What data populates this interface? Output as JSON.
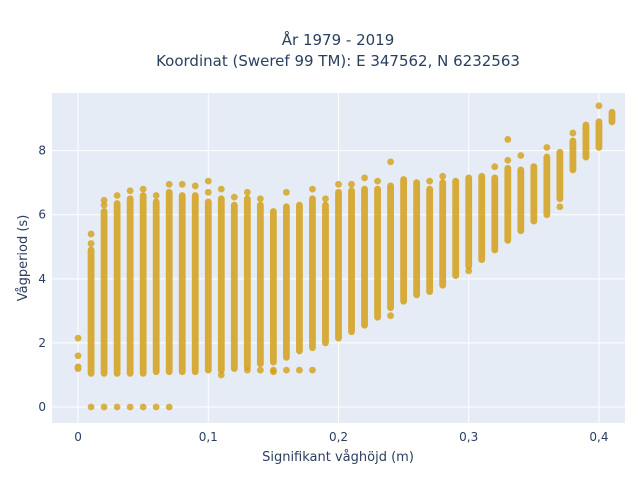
{
  "chart_data": {
    "type": "scatter",
    "title_line1": "År 1979 - 2019",
    "title_line2": "Koordinat (Sweref 99 TM): E 347562, N 6232563",
    "xlabel": "Signifikant våghöjd (m)",
    "ylabel": "Vågperiod (s)",
    "xlim": [
      -0.02,
      0.42
    ],
    "ylim": [
      -0.5,
      9.8
    ],
    "xticks": [
      0,
      0.1,
      0.2,
      0.3,
      0.4
    ],
    "xtick_labels": [
      "0",
      "0,1",
      "0,2",
      "0,3",
      "0,4"
    ],
    "yticks": [
      0,
      2,
      4,
      6,
      8
    ],
    "ytick_labels": [
      "0",
      "2",
      "4",
      "6",
      "8"
    ],
    "grid": true,
    "marker_color": "#d4a017",
    "plot_bg": "#e5ecf6",
    "columns": [
      {
        "x": 0.0,
        "ymin": 1.2,
        "ymax": 1.25,
        "extra": [
          1.6,
          2.15
        ]
      },
      {
        "x": 0.01,
        "ymin": 1.05,
        "ymax": 4.9,
        "extra": [
          0,
          5.1,
          5.4
        ]
      },
      {
        "x": 0.02,
        "ymin": 1.05,
        "ymax": 6.1,
        "extra": [
          0,
          6.3,
          6.45
        ]
      },
      {
        "x": 0.03,
        "ymin": 1.05,
        "ymax": 6.35,
        "extra": [
          0,
          6.6
        ]
      },
      {
        "x": 0.04,
        "ymin": 1.05,
        "ymax": 6.5,
        "extra": [
          0,
          6.75
        ]
      },
      {
        "x": 0.05,
        "ymin": 1.05,
        "ymax": 6.6,
        "extra": [
          0,
          6.8
        ]
      },
      {
        "x": 0.06,
        "ymin": 1.1,
        "ymax": 6.4,
        "extra": [
          0,
          6.6
        ]
      },
      {
        "x": 0.07,
        "ymin": 1.1,
        "ymax": 6.7,
        "extra": [
          0,
          6.95
        ]
      },
      {
        "x": 0.08,
        "ymin": 1.1,
        "ymax": 6.6,
        "extra": [
          6.95
        ]
      },
      {
        "x": 0.09,
        "ymin": 1.1,
        "ymax": 6.6,
        "extra": [
          6.9
        ]
      },
      {
        "x": 0.1,
        "ymin": 1.15,
        "ymax": 6.4,
        "extra": [
          6.7,
          7.05
        ]
      },
      {
        "x": 0.11,
        "ymin": 1.15,
        "ymax": 6.5,
        "extra": [
          1.0,
          6.8
        ]
      },
      {
        "x": 0.12,
        "ymin": 1.2,
        "ymax": 6.3,
        "extra": [
          6.55
        ]
      },
      {
        "x": 0.13,
        "ymin": 1.25,
        "ymax": 6.5,
        "extra": [
          1.15,
          6.7
        ]
      },
      {
        "x": 0.14,
        "ymin": 1.35,
        "ymax": 6.3,
        "extra": [
          1.15,
          6.5
        ]
      },
      {
        "x": 0.15,
        "ymin": 1.4,
        "ymax": 6.1,
        "extra": [
          1.1,
          1.15
        ]
      },
      {
        "x": 0.16,
        "ymin": 1.55,
        "ymax": 6.25,
        "extra": [
          1.15,
          6.7
        ]
      },
      {
        "x": 0.17,
        "ymin": 1.75,
        "ymax": 6.3,
        "extra": [
          1.15
        ]
      },
      {
        "x": 0.18,
        "ymin": 1.85,
        "ymax": 6.5,
        "extra": [
          1.15,
          6.8
        ]
      },
      {
        "x": 0.19,
        "ymin": 2.0,
        "ymax": 6.3,
        "extra": [
          6.5
        ]
      },
      {
        "x": 0.2,
        "ymin": 2.15,
        "ymax": 6.7,
        "extra": [
          6.95
        ]
      },
      {
        "x": 0.21,
        "ymin": 2.35,
        "ymax": 6.75,
        "extra": [
          6.95
        ]
      },
      {
        "x": 0.22,
        "ymin": 2.55,
        "ymax": 6.8,
        "extra": [
          7.15
        ]
      },
      {
        "x": 0.23,
        "ymin": 2.8,
        "ymax": 6.8,
        "extra": [
          7.05
        ]
      },
      {
        "x": 0.24,
        "ymin": 3.1,
        "ymax": 6.9,
        "extra": [
          2.85,
          7.65
        ]
      },
      {
        "x": 0.25,
        "ymin": 3.3,
        "ymax": 7.1,
        "extra": []
      },
      {
        "x": 0.26,
        "ymin": 3.5,
        "ymax": 7.0,
        "extra": []
      },
      {
        "x": 0.27,
        "ymin": 3.6,
        "ymax": 6.8,
        "extra": [
          7.05
        ]
      },
      {
        "x": 0.28,
        "ymin": 3.8,
        "ymax": 7.0,
        "extra": [
          7.2
        ]
      },
      {
        "x": 0.29,
        "ymin": 4.1,
        "ymax": 7.05,
        "extra": []
      },
      {
        "x": 0.3,
        "ymin": 4.4,
        "ymax": 7.15,
        "extra": [
          4.25
        ]
      },
      {
        "x": 0.31,
        "ymin": 4.6,
        "ymax": 7.2,
        "extra": []
      },
      {
        "x": 0.32,
        "ymin": 4.9,
        "ymax": 7.15,
        "extra": [
          7.5
        ]
      },
      {
        "x": 0.33,
        "ymin": 5.2,
        "ymax": 7.45,
        "extra": [
          7.7,
          8.35
        ]
      },
      {
        "x": 0.34,
        "ymin": 5.5,
        "ymax": 7.4,
        "extra": [
          7.85
        ]
      },
      {
        "x": 0.35,
        "ymin": 5.8,
        "ymax": 7.5,
        "extra": []
      },
      {
        "x": 0.36,
        "ymin": 6.0,
        "ymax": 7.8,
        "extra": [
          8.1
        ]
      },
      {
        "x": 0.37,
        "ymin": 6.5,
        "ymax": 7.95,
        "extra": [
          6.25
        ]
      },
      {
        "x": 0.38,
        "ymin": 7.4,
        "ymax": 8.3,
        "extra": [
          8.55
        ]
      },
      {
        "x": 0.39,
        "ymin": 7.8,
        "ymax": 8.8,
        "extra": []
      },
      {
        "x": 0.4,
        "ymin": 8.1,
        "ymax": 8.9,
        "extra": [
          9.4
        ]
      },
      {
        "x": 0.41,
        "ymin": 8.9,
        "ymax": 9.2,
        "extra": []
      }
    ]
  }
}
